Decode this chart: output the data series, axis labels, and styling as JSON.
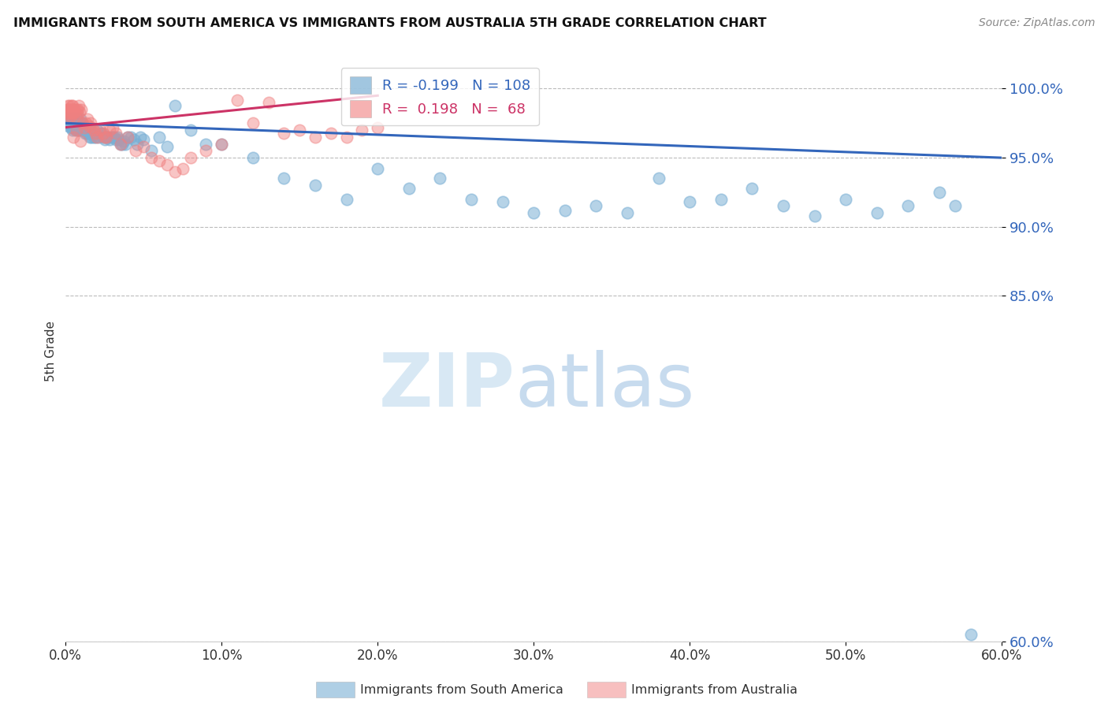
{
  "title": "IMMIGRANTS FROM SOUTH AMERICA VS IMMIGRANTS FROM AUSTRALIA 5TH GRADE CORRELATION CHART",
  "source": "Source: ZipAtlas.com",
  "ylabel": "5th Grade",
  "blue_label": "Immigrants from South America",
  "pink_label": "Immigrants from Australia",
  "blue_R": -0.199,
  "blue_N": 108,
  "pink_R": 0.198,
  "pink_N": 68,
  "blue_color": "#7aafd4",
  "pink_color": "#f08080",
  "blue_line_color": "#3366bb",
  "pink_line_color": "#cc3366",
  "background_color": "#FFFFFF",
  "watermark_zip": "ZIP",
  "watermark_atlas": "atlas",
  "xlim": [
    0,
    60
  ],
  "ylim": [
    60,
    102
  ],
  "yticks": [
    100.0,
    95.0,
    90.0,
    85.0,
    60.0
  ],
  "xticks": [
    0,
    10,
    20,
    30,
    40,
    50,
    60
  ],
  "blue_scatter_x": [
    0.1,
    0.15,
    0.2,
    0.25,
    0.3,
    0.32,
    0.35,
    0.37,
    0.4,
    0.42,
    0.45,
    0.48,
    0.5,
    0.52,
    0.55,
    0.58,
    0.6,
    0.62,
    0.65,
    0.68,
    0.7,
    0.72,
    0.75,
    0.78,
    0.8,
    0.82,
    0.85,
    0.88,
    0.9,
    0.92,
    0.95,
    0.98,
    1.0,
    1.05,
    1.1,
    1.15,
    1.2,
    1.25,
    1.3,
    1.35,
    1.4,
    1.45,
    1.5,
    1.55,
    1.6,
    1.65,
    1.7,
    1.8,
    1.9,
    2.0,
    2.1,
    2.2,
    2.3,
    2.4,
    2.5,
    2.6,
    2.7,
    2.8,
    2.9,
    3.0,
    3.1,
    3.2,
    3.3,
    3.4,
    3.5,
    3.6,
    3.7,
    3.8,
    4.0,
    4.2,
    4.4,
    4.6,
    4.8,
    5.0,
    5.5,
    6.0,
    6.5,
    7.0,
    8.0,
    9.0,
    10.0,
    12.0,
    14.0,
    16.0,
    18.0,
    20.0,
    22.0,
    24.0,
    26.0,
    28.0,
    30.0,
    32.0,
    34.0,
    36.0,
    38.0,
    40.0,
    42.0,
    44.0,
    46.0,
    48.0,
    50.0,
    52.0,
    54.0,
    56.0,
    57.0,
    58.0
  ],
  "blue_scatter_y": [
    97.8,
    97.5,
    97.3,
    97.6,
    97.4,
    97.8,
    97.2,
    97.5,
    97.3,
    97.0,
    97.5,
    97.8,
    97.2,
    97.6,
    97.4,
    97.8,
    97.5,
    97.3,
    97.0,
    97.5,
    97.2,
    97.8,
    97.3,
    97.5,
    97.0,
    97.4,
    97.2,
    97.5,
    97.3,
    97.8,
    97.0,
    97.5,
    97.3,
    97.5,
    97.0,
    97.3,
    97.0,
    96.8,
    97.2,
    96.8,
    97.0,
    96.8,
    97.0,
    96.5,
    97.0,
    96.5,
    96.8,
    96.5,
    96.5,
    97.0,
    96.5,
    96.8,
    96.8,
    96.5,
    96.3,
    96.5,
    96.5,
    96.3,
    96.5,
    96.5,
    96.5,
    96.3,
    96.5,
    96.3,
    96.0,
    96.0,
    96.2,
    96.0,
    96.5,
    96.5,
    96.3,
    96.0,
    96.5,
    96.3,
    95.5,
    96.5,
    95.8,
    98.8,
    97.0,
    96.0,
    96.0,
    95.0,
    93.5,
    93.0,
    92.0,
    94.2,
    92.8,
    93.5,
    92.0,
    91.8,
    91.0,
    91.2,
    91.5,
    91.0,
    93.5,
    91.8,
    92.0,
    92.8,
    91.5,
    90.8,
    92.0,
    91.0,
    91.5,
    92.5,
    91.5,
    60.5
  ],
  "pink_scatter_x": [
    0.08,
    0.1,
    0.12,
    0.15,
    0.18,
    0.2,
    0.22,
    0.25,
    0.28,
    0.3,
    0.32,
    0.35,
    0.38,
    0.4,
    0.42,
    0.45,
    0.5,
    0.55,
    0.6,
    0.65,
    0.7,
    0.75,
    0.8,
    0.85,
    0.9,
    1.0,
    1.1,
    1.2,
    1.3,
    1.4,
    1.5,
    1.6,
    1.7,
    1.8,
    1.9,
    2.0,
    2.2,
    2.4,
    2.6,
    2.8,
    3.0,
    3.5,
    4.0,
    4.5,
    5.0,
    5.5,
    6.0,
    6.5,
    7.0,
    7.5,
    8.0,
    9.0,
    10.0,
    11.0,
    12.0,
    13.0,
    14.0,
    15.0,
    16.0,
    17.0,
    18.0,
    19.0,
    20.0,
    2.5,
    3.2,
    0.95,
    0.68,
    0.48
  ],
  "pink_scatter_y": [
    98.5,
    98.2,
    98.8,
    98.5,
    98.0,
    98.3,
    98.8,
    98.5,
    98.2,
    98.5,
    98.0,
    98.5,
    98.8,
    98.3,
    98.5,
    98.8,
    98.2,
    98.5,
    98.3,
    98.0,
    98.5,
    98.2,
    98.5,
    98.8,
    98.3,
    98.5,
    97.5,
    97.2,
    97.5,
    97.8,
    97.3,
    97.5,
    97.2,
    97.0,
    96.8,
    96.5,
    97.0,
    96.8,
    96.5,
    97.0,
    97.2,
    96.0,
    96.5,
    95.5,
    95.8,
    95.0,
    94.8,
    94.5,
    94.0,
    94.2,
    95.0,
    95.5,
    96.0,
    99.2,
    97.5,
    99.0,
    96.8,
    97.0,
    96.5,
    96.8,
    96.5,
    97.0,
    97.2,
    96.5,
    96.8,
    96.2,
    97.0,
    96.5
  ],
  "blue_trend_x0": 0,
  "blue_trend_x1": 60,
  "blue_trend_y0": 97.5,
  "blue_trend_y1": 95.0,
  "pink_trend_x0": 0,
  "pink_trend_x1": 20,
  "pink_trend_y0": 97.2,
  "pink_trend_y1": 99.5
}
